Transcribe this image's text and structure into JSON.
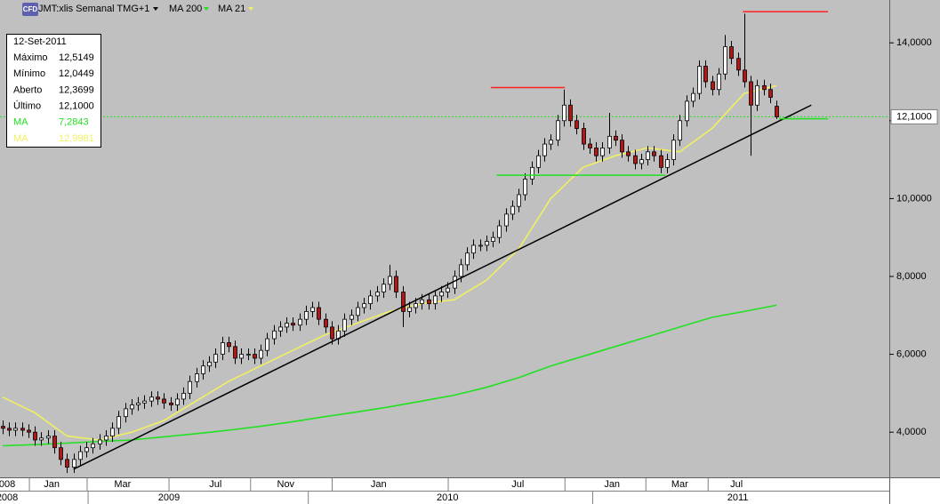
{
  "chart_data": {
    "type": "candlestick",
    "header": {
      "icon": "CFD",
      "title": "JMT:xlis Semanal TMG+1"
    },
    "info_box": {
      "date": "12-Set-2011",
      "rows": [
        {
          "label": "Máximo",
          "value": "12,5149"
        },
        {
          "label": "Mínimo",
          "value": "12,0449"
        },
        {
          "label": "Aberto",
          "value": "12,3699"
        },
        {
          "label": "Último",
          "value": "12,1000"
        },
        {
          "label": "MA",
          "value": "7,2843",
          "color": "#22e022"
        },
        {
          "label": "MA",
          "value": "12,9981",
          "color": "#f0f060"
        }
      ]
    },
    "up_color": "#ffffff",
    "down_color": "#b01818",
    "open": [
      4.15,
      4.1,
      4.05,
      4.1,
      4.05,
      4.0,
      3.8,
      3.85,
      3.9,
      3.6,
      3.3,
      3.1,
      3.3,
      3.5,
      3.6,
      3.7,
      3.8,
      3.9,
      4.1,
      4.4,
      4.6,
      4.7,
      4.75,
      4.8,
      4.9,
      4.85,
      4.75,
      4.7,
      4.85,
      5.0,
      5.3,
      5.5,
      5.7,
      5.8,
      6.0,
      6.3,
      6.2,
      5.9,
      6.0,
      6.0,
      5.9,
      6.1,
      6.4,
      6.6,
      6.7,
      6.8,
      6.75,
      6.9,
      7.1,
      7.2,
      6.9,
      6.7,
      6.4,
      6.6,
      6.9,
      7.0,
      7.2,
      7.3,
      7.5,
      7.6,
      7.8,
      8.0,
      7.6,
      7.1,
      7.2,
      7.3,
      7.4,
      7.3,
      7.5,
      7.6,
      7.7,
      8.0,
      8.3,
      8.6,
      8.8,
      8.8,
      8.9,
      9.0,
      9.3,
      9.6,
      9.8,
      10.1,
      10.5,
      10.8,
      11.1,
      11.4,
      11.5,
      12.0,
      12.4,
      12.0,
      11.8,
      11.4,
      11.3,
      11.1,
      11.3,
      11.6,
      11.5,
      11.2,
      11.1,
      10.9,
      11.0,
      11.2,
      11.1,
      10.8,
      11.0,
      11.5,
      12.0,
      12.5,
      12.7,
      13.4,
      13.0,
      12.8,
      13.2,
      13.9,
      13.6,
      13.3,
      13.0,
      12.4,
      12.9,
      12.8,
      12.3699
    ],
    "high": [
      4.3,
      4.25,
      4.25,
      4.25,
      4.2,
      4.15,
      4.0,
      4.05,
      4.05,
      3.75,
      3.45,
      3.45,
      3.65,
      3.75,
      3.85,
      3.95,
      4.05,
      4.25,
      4.55,
      4.75,
      4.85,
      4.9,
      4.95,
      5.05,
      5.05,
      5.0,
      4.9,
      5.0,
      5.15,
      5.45,
      5.65,
      5.85,
      5.95,
      6.15,
      6.45,
      6.45,
      6.35,
      6.15,
      6.15,
      6.15,
      6.25,
      6.55,
      6.75,
      6.85,
      6.95,
      6.95,
      7.05,
      7.25,
      7.35,
      7.35,
      7.05,
      6.85,
      6.75,
      7.05,
      7.15,
      7.35,
      7.45,
      7.65,
      7.75,
      7.95,
      8.3,
      8.15,
      7.75,
      7.35,
      7.45,
      7.55,
      7.55,
      7.65,
      7.75,
      7.85,
      8.15,
      8.45,
      8.75,
      8.95,
      8.95,
      9.05,
      9.15,
      9.45,
      9.75,
      9.95,
      10.25,
      10.65,
      10.95,
      11.25,
      11.55,
      11.65,
      12.15,
      12.8,
      12.55,
      12.15,
      11.95,
      11.55,
      11.45,
      11.45,
      12.2,
      11.75,
      11.65,
      11.35,
      11.25,
      11.15,
      11.35,
      11.35,
      11.25,
      11.15,
      11.65,
      12.15,
      12.65,
      12.85,
      13.55,
      13.55,
      13.15,
      13.35,
      14.2,
      14.05,
      13.75,
      14.75,
      13.15,
      13.05,
      13.05,
      12.95,
      12.5149
    ],
    "low": [
      3.95,
      3.9,
      3.9,
      3.9,
      3.85,
      3.65,
      3.65,
      3.7,
      3.45,
      3.15,
      2.95,
      2.95,
      3.15,
      3.35,
      3.45,
      3.55,
      3.65,
      3.75,
      3.95,
      4.25,
      4.45,
      4.55,
      4.6,
      4.65,
      4.7,
      4.6,
      4.55,
      4.55,
      4.7,
      4.85,
      5.15,
      5.35,
      5.55,
      5.65,
      5.85,
      6.05,
      5.75,
      5.75,
      5.85,
      5.75,
      5.75,
      5.95,
      6.25,
      6.45,
      6.55,
      6.6,
      6.6,
      6.75,
      6.95,
      6.75,
      6.55,
      6.25,
      6.25,
      6.45,
      6.75,
      6.85,
      7.05,
      7.15,
      7.35,
      7.45,
      7.65,
      7.45,
      6.7,
      6.95,
      7.05,
      7.15,
      7.15,
      7.15,
      7.35,
      7.45,
      7.55,
      7.85,
      8.15,
      8.45,
      8.65,
      8.65,
      8.75,
      8.85,
      9.15,
      9.45,
      9.65,
      9.95,
      10.35,
      10.65,
      10.95,
      11.25,
      11.35,
      11.85,
      11.85,
      11.65,
      11.25,
      11.15,
      10.95,
      10.95,
      11.15,
      11.35,
      11.05,
      10.95,
      10.75,
      10.75,
      10.85,
      10.95,
      10.65,
      10.65,
      10.85,
      11.35,
      11.85,
      12.35,
      12.55,
      12.85,
      12.65,
      12.65,
      13.05,
      13.45,
      13.15,
      12.85,
      11.1,
      12.25,
      12.65,
      12.45,
      12.0449
    ],
    "close": [
      4.1,
      4.05,
      4.1,
      4.05,
      4.0,
      3.8,
      3.85,
      3.9,
      3.6,
      3.3,
      3.1,
      3.3,
      3.5,
      3.6,
      3.7,
      3.8,
      3.9,
      4.1,
      4.4,
      4.6,
      4.7,
      4.75,
      4.8,
      4.9,
      4.85,
      4.75,
      4.7,
      4.85,
      5.0,
      5.3,
      5.5,
      5.7,
      5.8,
      6.0,
      6.3,
      6.2,
      5.9,
      6.0,
      6.0,
      5.9,
      6.1,
      6.4,
      6.6,
      6.7,
      6.8,
      6.75,
      6.9,
      7.1,
      7.2,
      6.9,
      6.7,
      6.4,
      6.6,
      6.9,
      7.0,
      7.2,
      7.3,
      7.5,
      7.6,
      7.8,
      8.0,
      7.6,
      7.1,
      7.2,
      7.3,
      7.4,
      7.3,
      7.5,
      7.6,
      7.7,
      8.0,
      8.3,
      8.6,
      8.8,
      8.8,
      8.9,
      9.0,
      9.3,
      9.6,
      9.8,
      10.1,
      10.5,
      10.8,
      11.1,
      11.4,
      11.5,
      12.0,
      12.4,
      12.0,
      11.8,
      11.4,
      11.3,
      11.1,
      11.3,
      11.6,
      11.5,
      11.2,
      11.1,
      10.9,
      11.0,
      11.2,
      11.1,
      10.8,
      11.0,
      11.5,
      12.0,
      12.5,
      12.7,
      13.4,
      13.0,
      12.8,
      13.2,
      13.9,
      13.6,
      13.3,
      13.0,
      12.4,
      12.9,
      12.8,
      12.6,
      12.1
    ],
    "series": [
      {
        "name": "MA 200",
        "color": "#22e022",
        "x": [
          0,
          5,
          10,
          15,
          20,
          25,
          30,
          35,
          40,
          45,
          50,
          55,
          60,
          65,
          70,
          75,
          80,
          85,
          90,
          95,
          100,
          105,
          110,
          115,
          120
        ],
        "values": [
          3.65,
          3.68,
          3.72,
          3.76,
          3.8,
          3.88,
          3.96,
          4.05,
          4.15,
          4.27,
          4.4,
          4.52,
          4.65,
          4.8,
          4.95,
          5.15,
          5.4,
          5.7,
          5.95,
          6.2,
          6.45,
          6.7,
          6.95,
          7.1,
          7.26
        ]
      },
      {
        "name": "MA 21",
        "color": "#f0f060",
        "x": [
          0,
          5,
          10,
          15,
          20,
          25,
          30,
          35,
          40,
          45,
          50,
          55,
          60,
          65,
          70,
          75,
          80,
          85,
          90,
          95,
          100,
          105,
          110,
          115,
          120
        ],
        "values": [
          4.9,
          4.5,
          3.9,
          3.8,
          4.0,
          4.3,
          4.8,
          5.3,
          5.7,
          6.1,
          6.5,
          6.8,
          7.1,
          7.3,
          7.4,
          7.9,
          8.7,
          10.0,
          10.8,
          11.1,
          11.3,
          11.2,
          11.8,
          12.7,
          12.9
        ]
      }
    ],
    "annotations": [
      {
        "color": "#000000",
        "x": [
          11,
          125.4
        ],
        "y": [
          3.05,
          12.4
        ]
      },
      {
        "color": "#ff2020",
        "x": [
          75.7,
          87.2
        ],
        "y": [
          12.85,
          12.85
        ]
      },
      {
        "color": "#ff2020",
        "x": [
          114.8,
          128
        ],
        "y": [
          14.8,
          14.8
        ]
      },
      {
        "color": "#22e022",
        "x": [
          76.6,
          102.8
        ],
        "y": [
          10.6,
          10.6
        ]
      },
      {
        "color": "#22e022",
        "x": [
          120.4,
          128
        ],
        "y": [
          12.05,
          12.05
        ]
      }
    ],
    "last_price": {
      "value": 12.1,
      "label": "12,1000",
      "color": "#22e022"
    },
    "xlim": [
      -0.41,
      137.5
    ],
    "ylim": [
      2.84,
      15.1
    ],
    "yticks": [
      {
        "value": 4,
        "label": "4,0000"
      },
      {
        "value": 6,
        "label": "6,0000"
      },
      {
        "value": 8,
        "label": "8,0000"
      },
      {
        "value": 10,
        "label": "10,0000"
      },
      {
        "value": 12,
        "label": "12,0000"
      },
      {
        "value": 14,
        "label": "14,0000"
      }
    ],
    "month_labels": [
      {
        "label": "008",
        "index": 0.7
      },
      {
        "label": "Jan",
        "index": 7.6
      },
      {
        "label": "Mar",
        "index": 18.6
      },
      {
        "label": "Jul",
        "index": 33
      },
      {
        "label": "Nov",
        "index": 43.9
      },
      {
        "label": "Jan",
        "index": 58.3
      },
      {
        "label": "Jul",
        "index": 79.9
      },
      {
        "label": "Jan",
        "index": 94.5
      },
      {
        "label": "Mar",
        "index": 105
      },
      {
        "label": "Jul",
        "index": 113.8
      }
    ],
    "year_labels": [
      {
        "label": "2008",
        "index": 0.7
      },
      {
        "label": "2009",
        "index": 25.8
      },
      {
        "label": "2010",
        "index": 69
      },
      {
        "label": "2011",
        "index": 114
      }
    ]
  }
}
